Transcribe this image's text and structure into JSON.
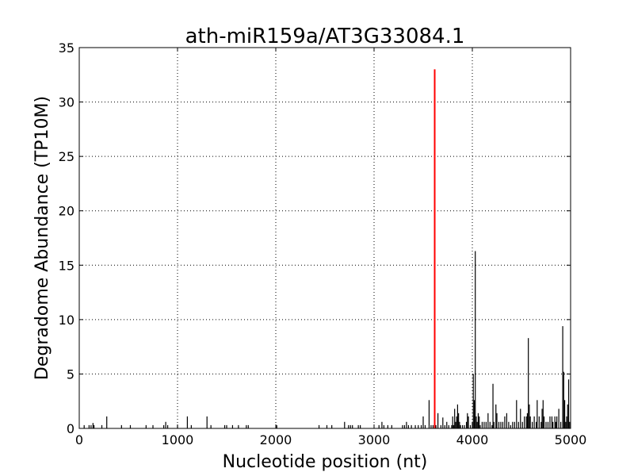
{
  "chart_data": {
    "type": "bar",
    "title": "ath-miR159a/AT3G33084.1",
    "xlabel": "Nucleotide position (nt)",
    "ylabel": "Degradome Abundance (TP10M)",
    "xlim": [
      0,
      5000
    ],
    "ylim": [
      0,
      35
    ],
    "xticks": [
      "0",
      "1000",
      "2000",
      "3000",
      "4000",
      "5000"
    ],
    "yticks": [
      "0",
      "5",
      "10",
      "15",
      "20",
      "25",
      "30",
      "35"
    ],
    "grid": true,
    "colors": {
      "background_series": "#000000",
      "target_series": "#ff0000"
    },
    "series": [
      {
        "role": "background",
        "points": [
          [
            50,
            0.3
          ],
          [
            100,
            0.3
          ],
          [
            120,
            0.3
          ],
          [
            140,
            0.5
          ],
          [
            150,
            0.3
          ],
          [
            230,
            0.3
          ],
          [
            280,
            1.1
          ],
          [
            430,
            0.3
          ],
          [
            520,
            0.3
          ],
          [
            680,
            0.3
          ],
          [
            750,
            0.3
          ],
          [
            860,
            0.3
          ],
          [
            880,
            0.6
          ],
          [
            900,
            0.3
          ],
          [
            1000,
            0.3
          ],
          [
            1100,
            1.1
          ],
          [
            1140,
            0.3
          ],
          [
            1300,
            1.1
          ],
          [
            1340,
            0.3
          ],
          [
            1480,
            0.3
          ],
          [
            1500,
            0.3
          ],
          [
            1560,
            0.3
          ],
          [
            1620,
            0.3
          ],
          [
            1700,
            0.3
          ],
          [
            1720,
            0.3
          ],
          [
            2010,
            0.3
          ],
          [
            2440,
            0.3
          ],
          [
            2520,
            0.3
          ],
          [
            2570,
            0.3
          ],
          [
            2700,
            0.6
          ],
          [
            2740,
            0.3
          ],
          [
            2760,
            0.3
          ],
          [
            2780,
            0.3
          ],
          [
            2840,
            0.3
          ],
          [
            2860,
            0.3
          ],
          [
            3050,
            0.3
          ],
          [
            3080,
            0.6
          ],
          [
            3100,
            0.3
          ],
          [
            3140,
            0.3
          ],
          [
            3180,
            0.3
          ],
          [
            3290,
            0.3
          ],
          [
            3310,
            0.3
          ],
          [
            3330,
            0.6
          ],
          [
            3350,
            0.3
          ],
          [
            3380,
            0.3
          ],
          [
            3420,
            0.3
          ],
          [
            3450,
            0.3
          ],
          [
            3480,
            0.3
          ],
          [
            3500,
            1.1
          ],
          [
            3520,
            0.3
          ],
          [
            3560,
            2.6
          ],
          [
            3580,
            0.3
          ],
          [
            3600,
            0.3
          ],
          [
            3630,
            0.3
          ],
          [
            3650,
            1.4
          ],
          [
            3680,
            0.3
          ],
          [
            3700,
            1.0
          ],
          [
            3720,
            0.3
          ],
          [
            3740,
            0.6
          ],
          [
            3760,
            0.3
          ],
          [
            3790,
            0.3
          ],
          [
            3800,
            1.1
          ],
          [
            3810,
            0.3
          ],
          [
            3820,
            1.8
          ],
          [
            3830,
            0.6
          ],
          [
            3840,
            1.1
          ],
          [
            3850,
            2.2
          ],
          [
            3860,
            1.4
          ],
          [
            3870,
            0.6
          ],
          [
            3880,
            0.3
          ],
          [
            3900,
            0.3
          ],
          [
            3920,
            0.3
          ],
          [
            3940,
            0.6
          ],
          [
            3950,
            1.4
          ],
          [
            3960,
            1.1
          ],
          [
            3980,
            0.3
          ],
          [
            4000,
            0.6
          ],
          [
            4010,
            5.0
          ],
          [
            4020,
            2.6
          ],
          [
            4030,
            16.3
          ],
          [
            4040,
            1.1
          ],
          [
            4050,
            0.6
          ],
          [
            4060,
            1.4
          ],
          [
            4070,
            1.1
          ],
          [
            4080,
            0.3
          ],
          [
            4100,
            0.6
          ],
          [
            4120,
            0.6
          ],
          [
            4140,
            0.6
          ],
          [
            4160,
            1.4
          ],
          [
            4180,
            0.6
          ],
          [
            4200,
            0.3
          ],
          [
            4210,
            4.1
          ],
          [
            4220,
            0.6
          ],
          [
            4240,
            2.2
          ],
          [
            4250,
            1.4
          ],
          [
            4270,
            0.6
          ],
          [
            4290,
            0.6
          ],
          [
            4310,
            0.6
          ],
          [
            4330,
            1.1
          ],
          [
            4350,
            1.4
          ],
          [
            4370,
            0.6
          ],
          [
            4390,
            0.3
          ],
          [
            4410,
            0.6
          ],
          [
            4430,
            0.6
          ],
          [
            4450,
            2.6
          ],
          [
            4470,
            0.6
          ],
          [
            4490,
            1.8
          ],
          [
            4510,
            0.6
          ],
          [
            4530,
            1.1
          ],
          [
            4550,
            1.1
          ],
          [
            4560,
            1.4
          ],
          [
            4570,
            8.3
          ],
          [
            4580,
            2.2
          ],
          [
            4590,
            1.1
          ],
          [
            4610,
            0.6
          ],
          [
            4630,
            1.1
          ],
          [
            4650,
            0.6
          ],
          [
            4660,
            2.6
          ],
          [
            4680,
            1.1
          ],
          [
            4700,
            0.6
          ],
          [
            4710,
            1.8
          ],
          [
            4720,
            2.6
          ],
          [
            4730,
            1.1
          ],
          [
            4750,
            0.6
          ],
          [
            4770,
            0.6
          ],
          [
            4790,
            1.1
          ],
          [
            4810,
            1.1
          ],
          [
            4820,
            0.6
          ],
          [
            4840,
            1.1
          ],
          [
            4850,
            0.6
          ],
          [
            4860,
            1.1
          ],
          [
            4880,
            1.8
          ],
          [
            4900,
            0.6
          ],
          [
            4920,
            9.4
          ],
          [
            4930,
            5.2
          ],
          [
            4940,
            2.6
          ],
          [
            4950,
            0.6
          ],
          [
            4960,
            1.1
          ],
          [
            4970,
            2.2
          ],
          [
            4980,
            4.5
          ],
          [
            4990,
            0.6
          ]
        ]
      },
      {
        "role": "target",
        "points": [
          [
            3617,
            33.0
          ]
        ]
      }
    ]
  }
}
